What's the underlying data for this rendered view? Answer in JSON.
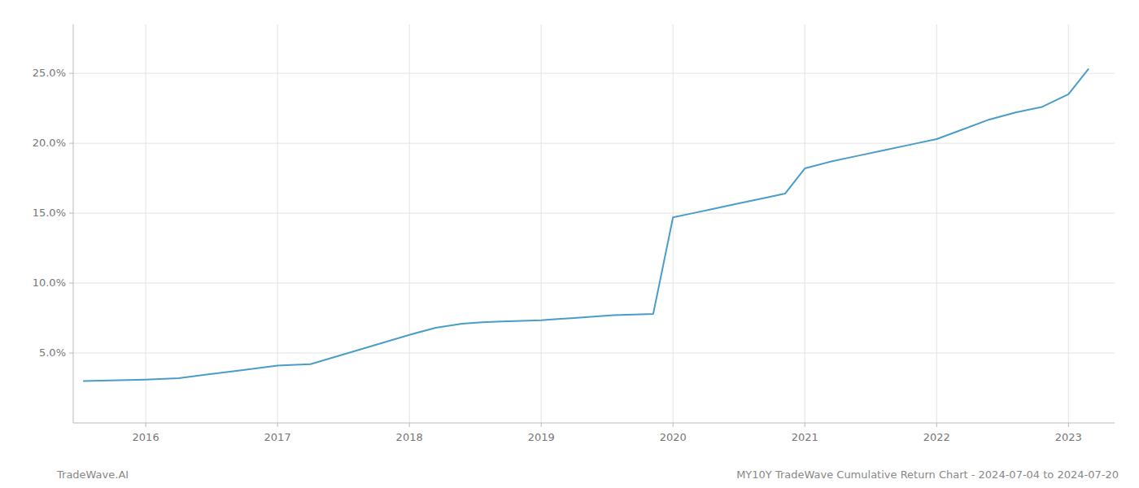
{
  "chart_data": {
    "type": "line",
    "annotations": [
      "TradeWave.AI",
      "MY10Y TradeWave Cumulative Return Chart - 2024-07-04 to 2024-07-20"
    ],
    "x": [
      2015.53,
      2016.0,
      2016.25,
      2016.5,
      2016.75,
      2017.0,
      2017.1,
      2017.25,
      2017.5,
      2017.75,
      2018.0,
      2018.2,
      2018.4,
      2018.55,
      2018.7,
      2018.85,
      2019.0,
      2019.08,
      2019.15,
      2019.25,
      2019.4,
      2019.55,
      2019.7,
      2019.85,
      2020.0,
      2020.15,
      2020.3,
      2020.5,
      2020.7,
      2020.85,
      2021.0,
      2021.2,
      2021.4,
      2021.6,
      2021.8,
      2022.0,
      2022.2,
      2022.4,
      2022.6,
      2022.8,
      2023.0,
      2023.15
    ],
    "values": [
      3.0,
      3.1,
      3.2,
      3.5,
      3.8,
      4.1,
      4.15,
      4.2,
      4.9,
      5.6,
      6.3,
      6.8,
      7.1,
      7.2,
      7.25,
      7.3,
      7.35,
      7.4,
      7.45,
      7.5,
      7.6,
      7.7,
      7.75,
      7.8,
      14.7,
      15.0,
      15.3,
      15.7,
      16.1,
      16.4,
      18.2,
      18.7,
      19.1,
      19.5,
      19.9,
      20.3,
      21.0,
      21.7,
      22.2,
      22.6,
      23.5,
      25.3
    ],
    "color": "#4a9cc9",
    "xlim": [
      2015.45,
      2023.35
    ],
    "ylim": [
      0,
      28.5
    ],
    "xticks": [
      2016,
      2017,
      2018,
      2019,
      2020,
      2021,
      2022,
      2023
    ],
    "yticks": [
      {
        "value": 5.0,
        "label": "5.0%"
      },
      {
        "value": 10.0,
        "label": "10.0%"
      },
      {
        "value": 15.0,
        "label": "15.0%"
      },
      {
        "value": 20.0,
        "label": "20.0%"
      },
      {
        "value": 25.0,
        "label": "25.0%"
      }
    ],
    "grid": true
  }
}
